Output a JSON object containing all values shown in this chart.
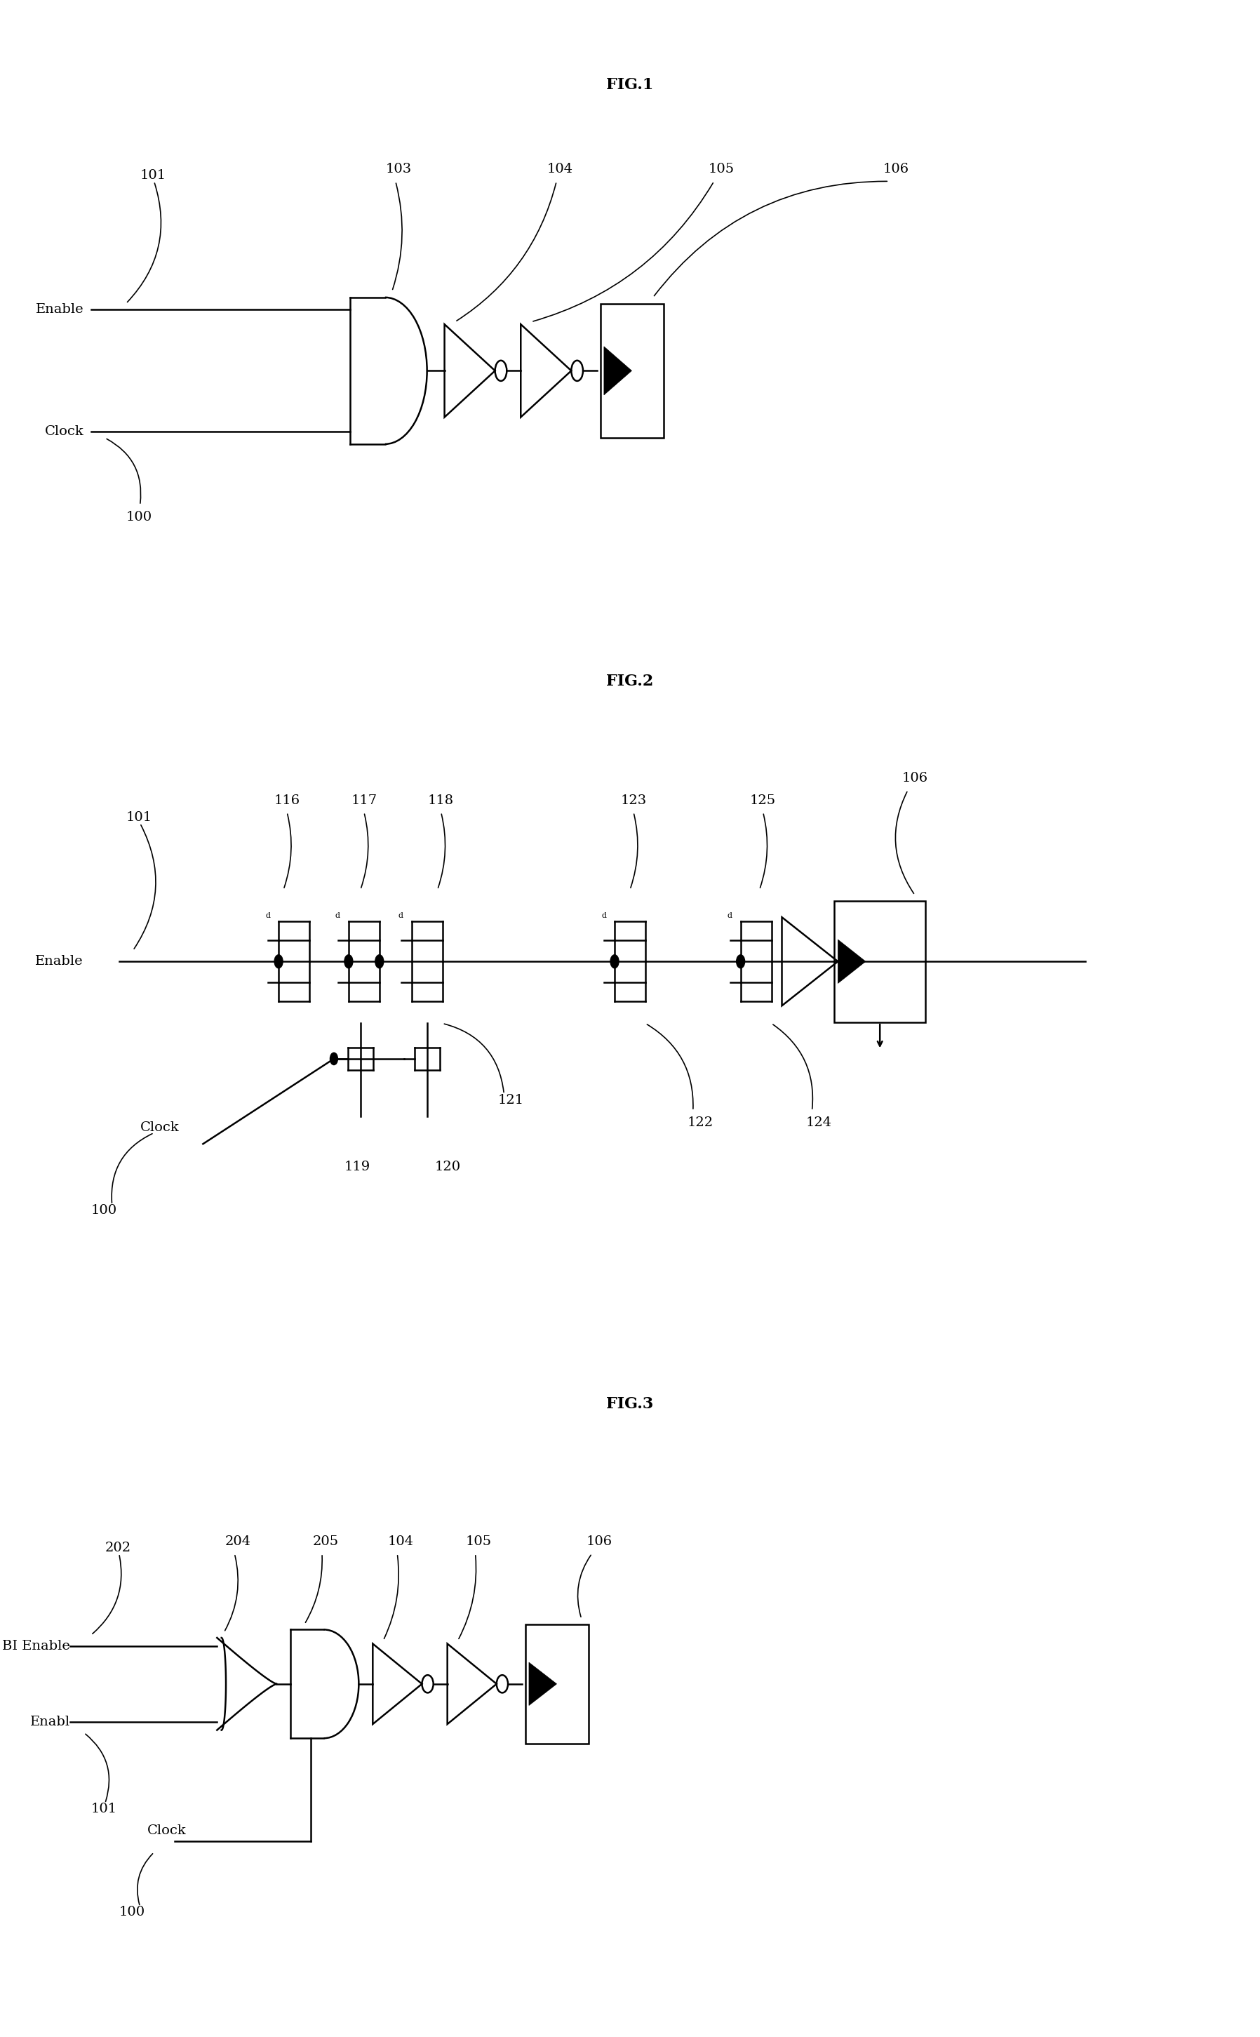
{
  "fig_width": 17.96,
  "fig_height": 29.03,
  "bg_color": "#ffffff",
  "lc": "#000000",
  "lw": 1.8,
  "fs": 14,
  "fig1_title": "FIG.1",
  "fig2_title": "FIG.2",
  "fig3_title": "FIG.3"
}
